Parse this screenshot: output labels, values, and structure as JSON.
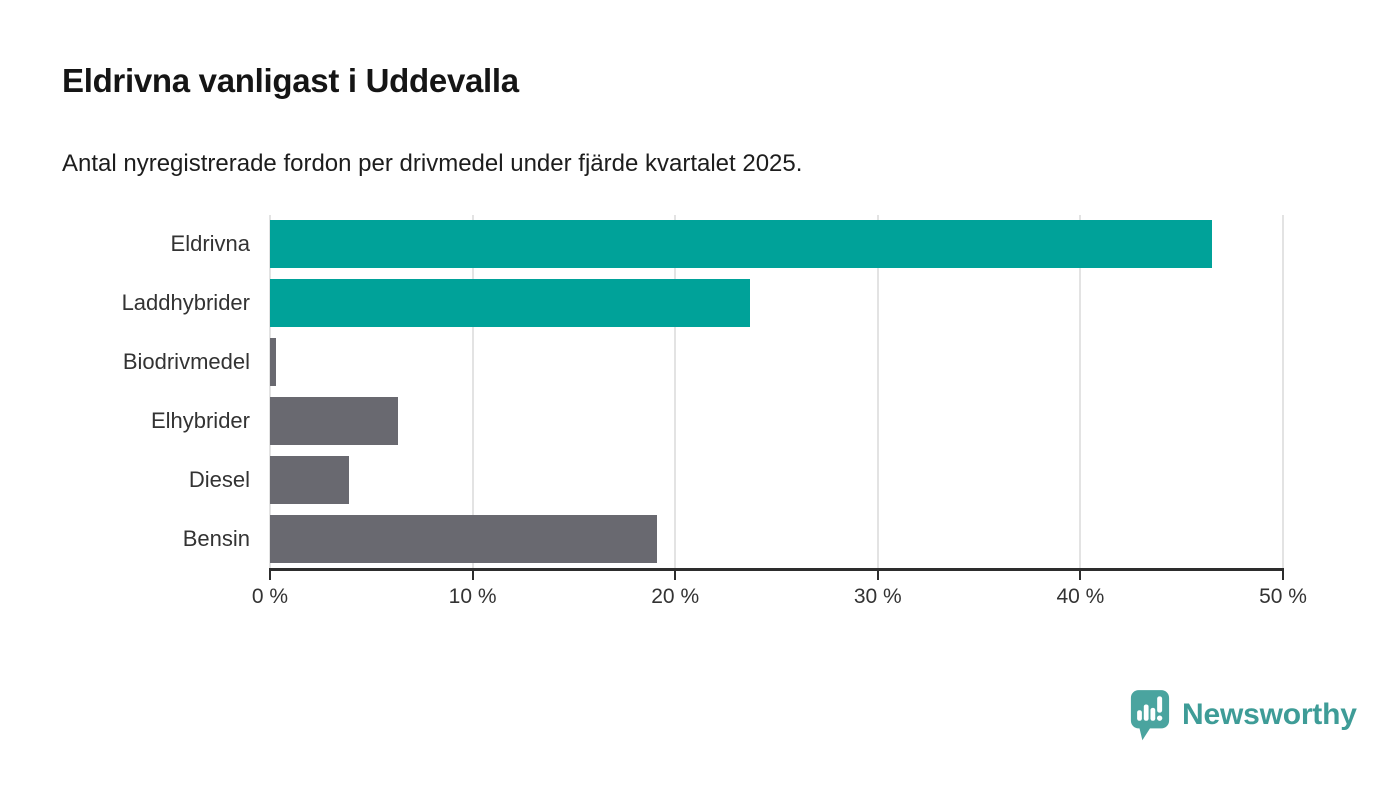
{
  "header": {
    "title": "Eldrivna vanligast i Uddevalla",
    "subtitle": "Antal nyregistrerade fordon per drivmedel under fjärde kvartalet 2025."
  },
  "chart_data": {
    "type": "bar",
    "orientation": "horizontal",
    "title": "Eldrivna vanligast i Uddevalla",
    "subtitle": "Antal nyregistrerade fordon per drivmedel under fjärde kvartalet 2025.",
    "categories": [
      "Eldrivna",
      "Laddhybrider",
      "Biodrivmedel",
      "Elhybrider",
      "Diesel",
      "Bensin"
    ],
    "values": [
      46.5,
      23.7,
      0.3,
      6.3,
      3.9,
      19.1
    ],
    "unit": "%",
    "bar_colors": [
      "#00a299",
      "#00a299",
      "#696970",
      "#696970",
      "#696970",
      "#696970"
    ],
    "xlim": [
      0,
      50
    ],
    "ticks": [
      {
        "value": 0,
        "label": "0 %"
      },
      {
        "value": 10,
        "label": "10 %"
      },
      {
        "value": 20,
        "label": "20 %"
      },
      {
        "value": 30,
        "label": "30 %"
      },
      {
        "value": 40,
        "label": "40 %"
      },
      {
        "value": 50,
        "label": "50 %"
      }
    ],
    "grid": "vertical",
    "legend": "none"
  },
  "colors": {
    "accent_teal": "#00a299",
    "bar_gray": "#696970",
    "gridline": "#e3e3e3",
    "axis": "#2d2d2d",
    "text": "#333333"
  },
  "branding": {
    "name": "Newsworthy",
    "text_color": "#3e9c97",
    "mark_color": "#4aa49f"
  }
}
